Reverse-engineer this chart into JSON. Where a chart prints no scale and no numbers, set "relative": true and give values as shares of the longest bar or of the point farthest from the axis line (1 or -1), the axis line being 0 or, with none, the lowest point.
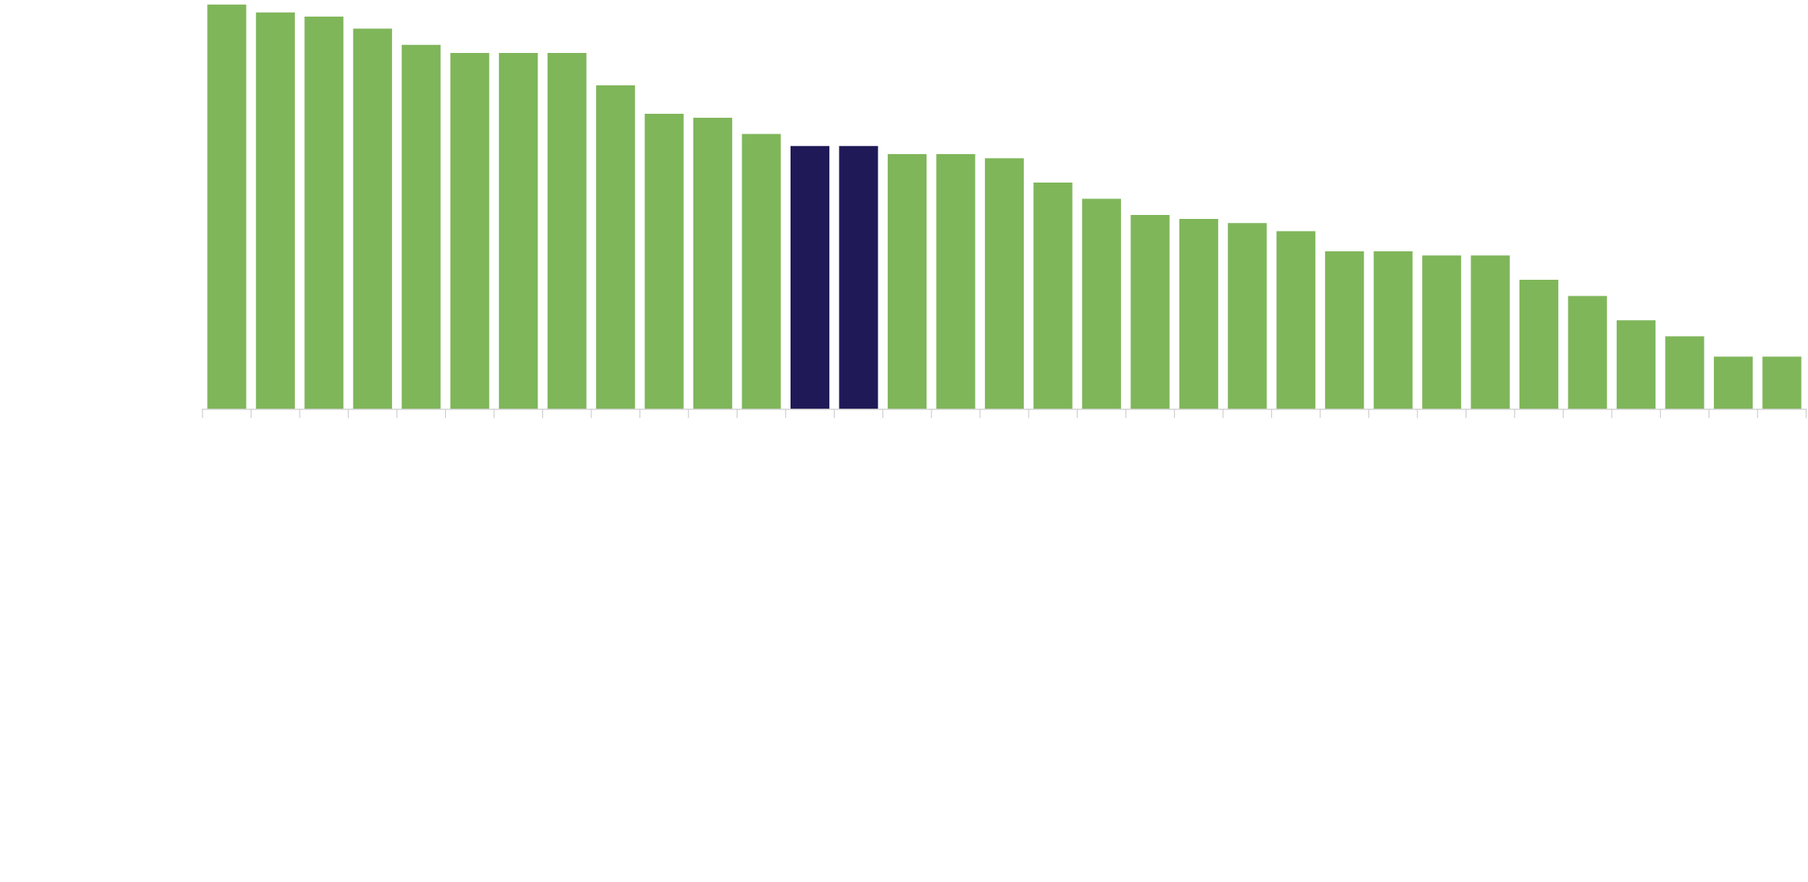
{
  "chart_data": {
    "type": "bar",
    "relative": true,
    "categories": [
      null,
      null,
      null,
      null,
      null,
      null,
      null,
      null,
      null,
      null,
      null,
      null,
      null,
      null,
      null,
      null,
      null,
      null,
      null,
      null,
      null,
      null,
      null,
      null,
      null,
      null,
      null,
      null,
      null,
      null,
      null,
      null,
      null
    ],
    "values": [
      1.0,
      0.98,
      0.97,
      0.94,
      0.9,
      0.88,
      0.88,
      0.88,
      0.8,
      0.73,
      0.72,
      0.68,
      0.65,
      0.65,
      0.63,
      0.63,
      0.62,
      0.56,
      0.52,
      0.48,
      0.47,
      0.46,
      0.44,
      0.39,
      0.39,
      0.38,
      0.38,
      0.32,
      0.28,
      0.22,
      0.18,
      0.13,
      0.13
    ],
    "colors": [
      "#7fb65a",
      "#7fb65a",
      "#7fb65a",
      "#7fb65a",
      "#7fb65a",
      "#7fb65a",
      "#7fb65a",
      "#7fb65a",
      "#7fb65a",
      "#7fb65a",
      "#7fb65a",
      "#7fb65a",
      "#1f1a57",
      "#1f1a57",
      "#7fb65a",
      "#7fb65a",
      "#7fb65a",
      "#7fb65a",
      "#7fb65a",
      "#7fb65a",
      "#7fb65a",
      "#7fb65a",
      "#7fb65a",
      "#7fb65a",
      "#7fb65a",
      "#7fb65a",
      "#7fb65a",
      "#7fb65a",
      "#7fb65a",
      "#7fb65a",
      "#7fb65a",
      "#7fb65a",
      "#7fb65a"
    ],
    "grid": false
  }
}
